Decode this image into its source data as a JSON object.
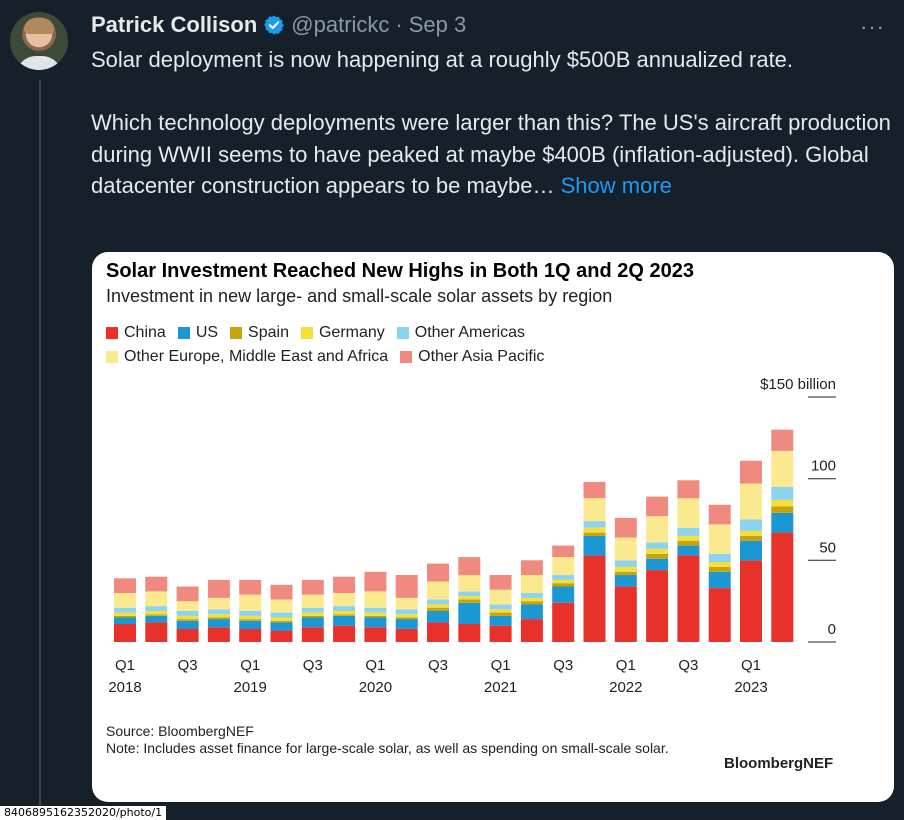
{
  "tweet": {
    "author_name": "Patrick Collison",
    "handle": "@patrickc",
    "separator": "·",
    "date": "Sep 3",
    "more_icon": "more-horizontal-icon",
    "verified_icon": "verified-badge-icon",
    "verified_color": "#1d9bf0",
    "paragraph1": "Solar deployment is now happening at a roughly $500B annualized rate.",
    "paragraph2": "Which technology deployments were larger than this? The US's aircraft production during WWII seems to have peaked at maybe $400B (inflation-adjusted). Global datacenter construction appears to be maybe…",
    "show_more": "Show more"
  },
  "media": {
    "title": "Solar Investment Reached New Highs in Both 1Q and 2Q 2023",
    "subtitle": "Investment in new large- and small-scale solar assets by region",
    "source": "Source: BloombergNEF",
    "note": "Note: Includes asset finance for large-scale solar, as well as spending on small-scale solar.",
    "brand": "BloombergNEF"
  },
  "status_url": "840689516235202​0/photo/1",
  "colors": {
    "background": "#15202b",
    "text": "#e7e9ea",
    "muted": "#8b98a5",
    "link": "#1d9bf0"
  },
  "chart_data": {
    "type": "bar",
    "stacked": true,
    "title": "Solar Investment Reached New Highs in Both 1Q and 2Q 2023",
    "subtitle": "Investment in new large- and small-scale solar assets by region",
    "y_unit_label": "$150 billion",
    "ylim": [
      0,
      150
    ],
    "y_ticks": [
      0,
      50,
      100,
      150
    ],
    "y_tick_labels": [
      "0",
      "50",
      "100",
      "$150 billion"
    ],
    "x_tick_labels": [
      {
        "index": 0,
        "label": "Q1",
        "year": "2018"
      },
      {
        "index": 2,
        "label": "Q3",
        "year": ""
      },
      {
        "index": 4,
        "label": "Q1",
        "year": "2019"
      },
      {
        "index": 6,
        "label": "Q3",
        "year": ""
      },
      {
        "index": 8,
        "label": "Q1",
        "year": "2020"
      },
      {
        "index": 10,
        "label": "Q3",
        "year": ""
      },
      {
        "index": 12,
        "label": "Q1",
        "year": "2021"
      },
      {
        "index": 14,
        "label": "Q3",
        "year": ""
      },
      {
        "index": 16,
        "label": "Q1",
        "year": "2022"
      },
      {
        "index": 18,
        "label": "Q3",
        "year": ""
      },
      {
        "index": 20,
        "label": "Q1",
        "year": "2023"
      }
    ],
    "categories": [
      "Q1 2018",
      "Q2 2018",
      "Q3 2018",
      "Q4 2018",
      "Q1 2019",
      "Q2 2019",
      "Q3 2019",
      "Q4 2019",
      "Q1 2020",
      "Q2 2020",
      "Q3 2020",
      "Q4 2020",
      "Q1 2021",
      "Q2 2021",
      "Q3 2021",
      "Q4 2021",
      "Q1 2022",
      "Q2 2022",
      "Q3 2022",
      "Q4 2022",
      "Q1 2023",
      "Q2 2023"
    ],
    "legend_placement": "top-left",
    "series": [
      {
        "name": "China",
        "color": "#e8312a",
        "values": [
          11,
          12,
          8,
          9,
          8,
          7,
          9,
          10,
          9,
          8,
          12,
          11,
          10,
          14,
          24,
          53,
          34,
          44,
          53,
          33,
          50,
          67
        ]
      },
      {
        "name": "US",
        "color": "#1b97d4",
        "values": [
          4,
          4,
          5,
          5,
          5,
          5,
          6,
          6,
          6,
          6,
          7,
          13,
          6,
          9,
          10,
          12,
          7,
          7,
          6,
          10,
          12,
          12
        ]
      },
      {
        "name": "Spain",
        "color": "#c9a30d",
        "values": [
          1,
          1,
          1,
          1,
          1,
          1,
          1,
          1,
          1,
          1,
          2,
          2,
          2,
          2,
          2,
          2,
          2,
          3,
          3,
          3,
          3,
          4
        ]
      },
      {
        "name": "Germany",
        "color": "#f5df3a",
        "values": [
          2,
          2,
          2,
          2,
          2,
          2,
          2,
          2,
          2,
          2,
          2,
          2,
          2,
          2,
          2,
          3,
          3,
          3,
          3,
          3,
          3,
          4
        ]
      },
      {
        "name": "Other Americas",
        "color": "#8dd3ee",
        "values": [
          3,
          3,
          3,
          3,
          3,
          3,
          3,
          3,
          3,
          3,
          3,
          3,
          3,
          3,
          3,
          4,
          4,
          4,
          5,
          5,
          7,
          8
        ]
      },
      {
        "name": "Other Europe, Middle East and Africa",
        "color": "#fbe990",
        "values": [
          9,
          9,
          6,
          7,
          10,
          8,
          8,
          8,
          10,
          7,
          11,
          10,
          9,
          11,
          11,
          14,
          14,
          16,
          18,
          18,
          22,
          22
        ]
      },
      {
        "name": "Other Asia Pacific",
        "color": "#f08a80",
        "values": [
          9,
          9,
          9,
          11,
          9,
          9,
          9,
          10,
          12,
          14,
          11,
          11,
          9,
          9,
          7,
          10,
          12,
          12,
          11,
          12,
          14,
          13
        ]
      }
    ],
    "grid": false
  }
}
